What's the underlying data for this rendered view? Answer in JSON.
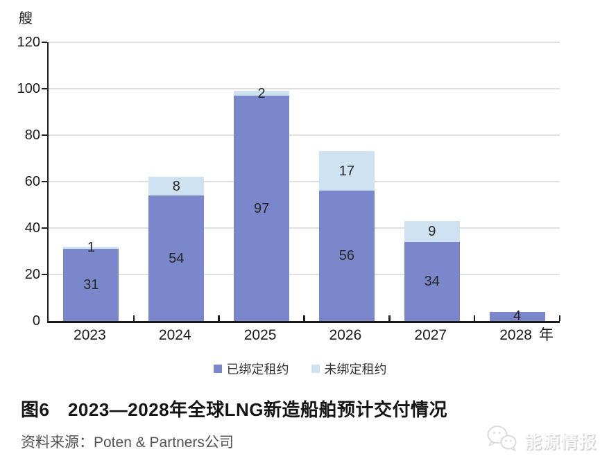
{
  "unit_label": "艘",
  "x_unit_label": "年",
  "chart_data": {
    "type": "bar",
    "stacked": true,
    "title": "图6　2023—2028年全球LNG新造船舶预计交付情况",
    "categories": [
      "2023",
      "2024",
      "2025",
      "2026",
      "2027",
      "2028"
    ],
    "series": [
      {
        "name": "已绑定租约",
        "color": "#7b87cb",
        "values": [
          31,
          54,
          97,
          56,
          34,
          4
        ]
      },
      {
        "name": "未绑定租约",
        "color": "#cfe2f1",
        "values": [
          1,
          8,
          2,
          17,
          9,
          0
        ]
      }
    ],
    "totals": [
      32,
      62,
      99,
      73,
      43,
      4
    ],
    "ylabel": "艘",
    "xlabel": "年",
    "ylim": [
      0,
      120
    ],
    "ytick_step": 20,
    "yticks": [
      0,
      20,
      40,
      60,
      80,
      100,
      120
    ],
    "grid": true,
    "legend_position": "bottom",
    "data_labels": "shown on each segment"
  },
  "caption": {
    "title": "图6　2023—2028年全球LNG新造船舶预计交付情况"
  },
  "source": {
    "text": "资料来源：Poten & Partners公司"
  },
  "watermark": {
    "text": "能源情报",
    "icon": "chat-bubbles-logo"
  },
  "colors": {
    "bound_series": "#7b87cb",
    "unbound_series": "#cfe2f1",
    "gridline": "#e0e0e0",
    "axis": "#1a1a1a",
    "source_text": "#525252"
  }
}
